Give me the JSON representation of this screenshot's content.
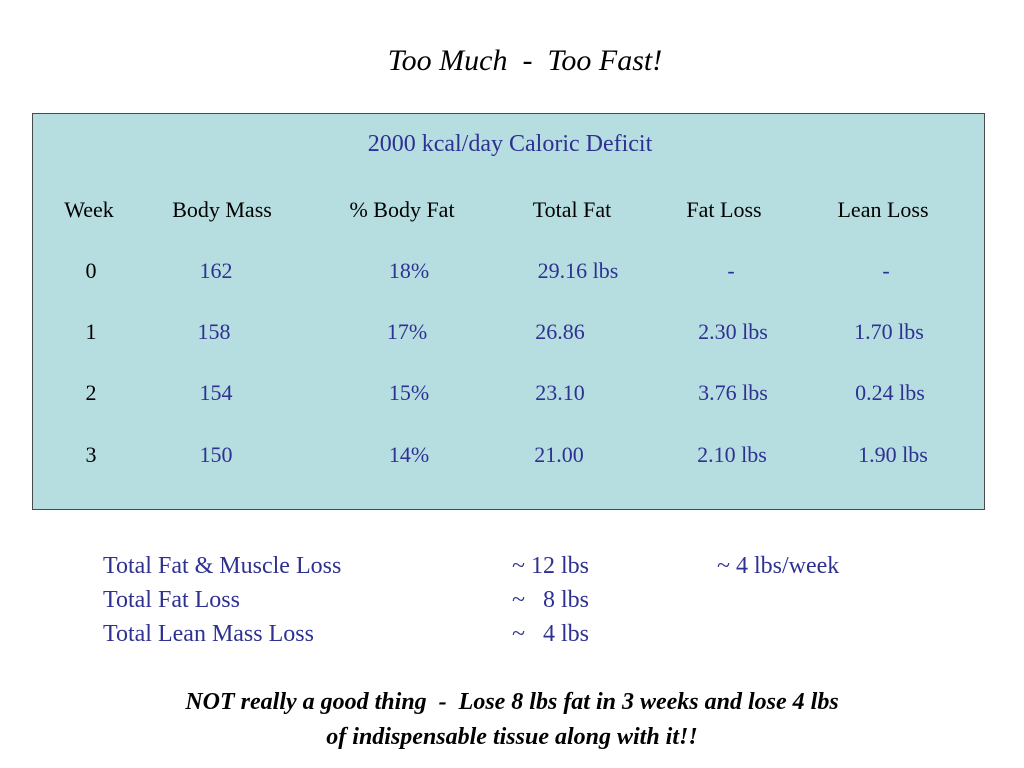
{
  "title": "Too Much  -  Too Fast!",
  "table": {
    "title": "2000 kcal/day Caloric Deficit",
    "headers": [
      "Week",
      "Body Mass",
      "% Body Fat",
      "Total Fat",
      "Fat Loss",
      "Lean Loss"
    ],
    "rows": [
      [
        "0",
        "162",
        "18%",
        "29.16 lbs",
        "-",
        "-"
      ],
      [
        "1",
        "158",
        "17%",
        "26.86",
        "2.30 lbs",
        "1.70 lbs"
      ],
      [
        "2",
        "154",
        "15%",
        "23.10",
        "3.76 lbs",
        "0.24 lbs"
      ],
      [
        "3",
        "150",
        "14%",
        "21.00",
        "2.10 lbs",
        "1.90 lbs"
      ]
    ]
  },
  "summary": [
    {
      "label": "Total Fat & Muscle Loss",
      "value": "~ 12 lbs",
      "rate": "~ 4 lbs/week"
    },
    {
      "label": "Total Fat Loss",
      "value": "~   8 lbs",
      "rate": ""
    },
    {
      "label": "Total Lean Mass Loss",
      "value": "~   4 lbs",
      "rate": ""
    }
  ],
  "note": {
    "line1": "NOT really a good thing  -  Lose 8 lbs fat in 3 weeks and lose 4 lbs",
    "line2": "of indispensable tissue along with it!!"
  }
}
